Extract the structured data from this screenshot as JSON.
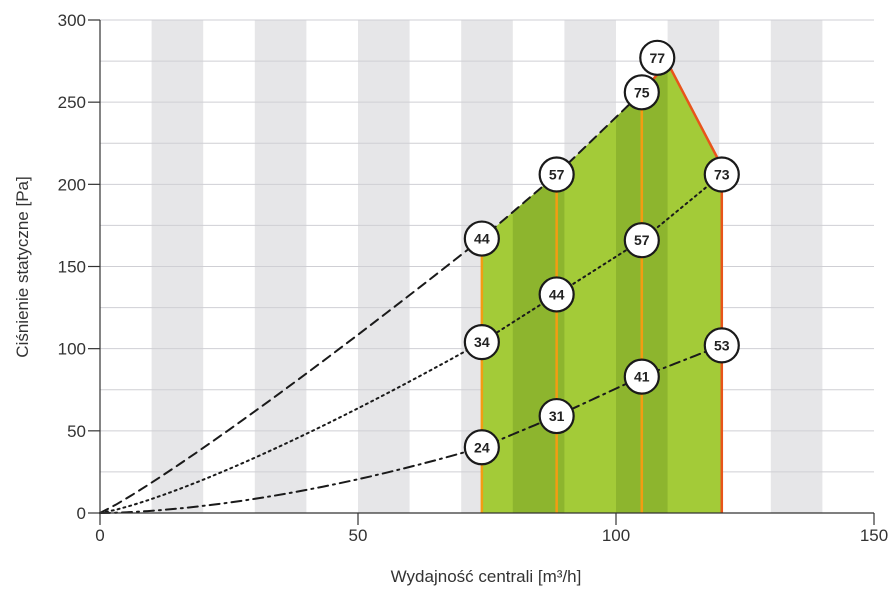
{
  "chart_data": {
    "type": "line",
    "xlabel": "Wydajność centrali [m³/h]",
    "ylabel": "Ciśnienie statyczne [Pa]",
    "xlim": [
      0,
      150
    ],
    "ylim": [
      0,
      300
    ],
    "x_ticks": [
      0,
      50,
      100,
      150
    ],
    "y_ticks": [
      0,
      50,
      100,
      150,
      200,
      250,
      300
    ],
    "grid": "alternating vertical bands every 10 m³/h, horizontal gridlines every 25 Pa",
    "colors": {
      "band": "#e6e6e8",
      "area": "#a3cb38",
      "area_dark": "#8db52e",
      "vertical_line": "#f39c12",
      "boundary": "#e8541b",
      "curve": "#1a1a1a"
    },
    "series": [
      {
        "style": "dashed",
        "points": [
          {
            "x": 0,
            "y": 0
          },
          {
            "x": 74,
            "y": 167,
            "label": "44"
          },
          {
            "x": 88.5,
            "y": 206,
            "label": "57"
          },
          {
            "x": 105,
            "y": 256,
            "label": "75"
          }
        ]
      },
      {
        "style": "dotted",
        "points": [
          {
            "x": 0,
            "y": 0
          },
          {
            "x": 74,
            "y": 104,
            "label": "34"
          },
          {
            "x": 88.5,
            "y": 133,
            "label": "44"
          },
          {
            "x": 105,
            "y": 166,
            "label": "57"
          },
          {
            "x": 120.5,
            "y": 206,
            "label": "73"
          }
        ]
      },
      {
        "style": "dash-dot",
        "points": [
          {
            "x": 0,
            "y": 0
          },
          {
            "x": 74,
            "y": 40,
            "label": "24"
          },
          {
            "x": 88.5,
            "y": 59,
            "label": "31"
          },
          {
            "x": 105,
            "y": 83,
            "label": "41"
          },
          {
            "x": 120.5,
            "y": 102,
            "label": "53"
          }
        ]
      }
    ],
    "operating_area": {
      "polygon": [
        [
          74,
          0
        ],
        [
          74,
          167
        ],
        [
          88.5,
          206
        ],
        [
          105,
          256
        ],
        [
          110,
          274
        ],
        [
          119.5,
          217
        ],
        [
          120.5,
          206
        ],
        [
          120.5,
          0
        ]
      ],
      "vertical_lines_x": [
        74,
        88.5,
        105,
        120.5
      ],
      "peak": {
        "x": 108,
        "y": 277,
        "label": "77"
      }
    }
  }
}
